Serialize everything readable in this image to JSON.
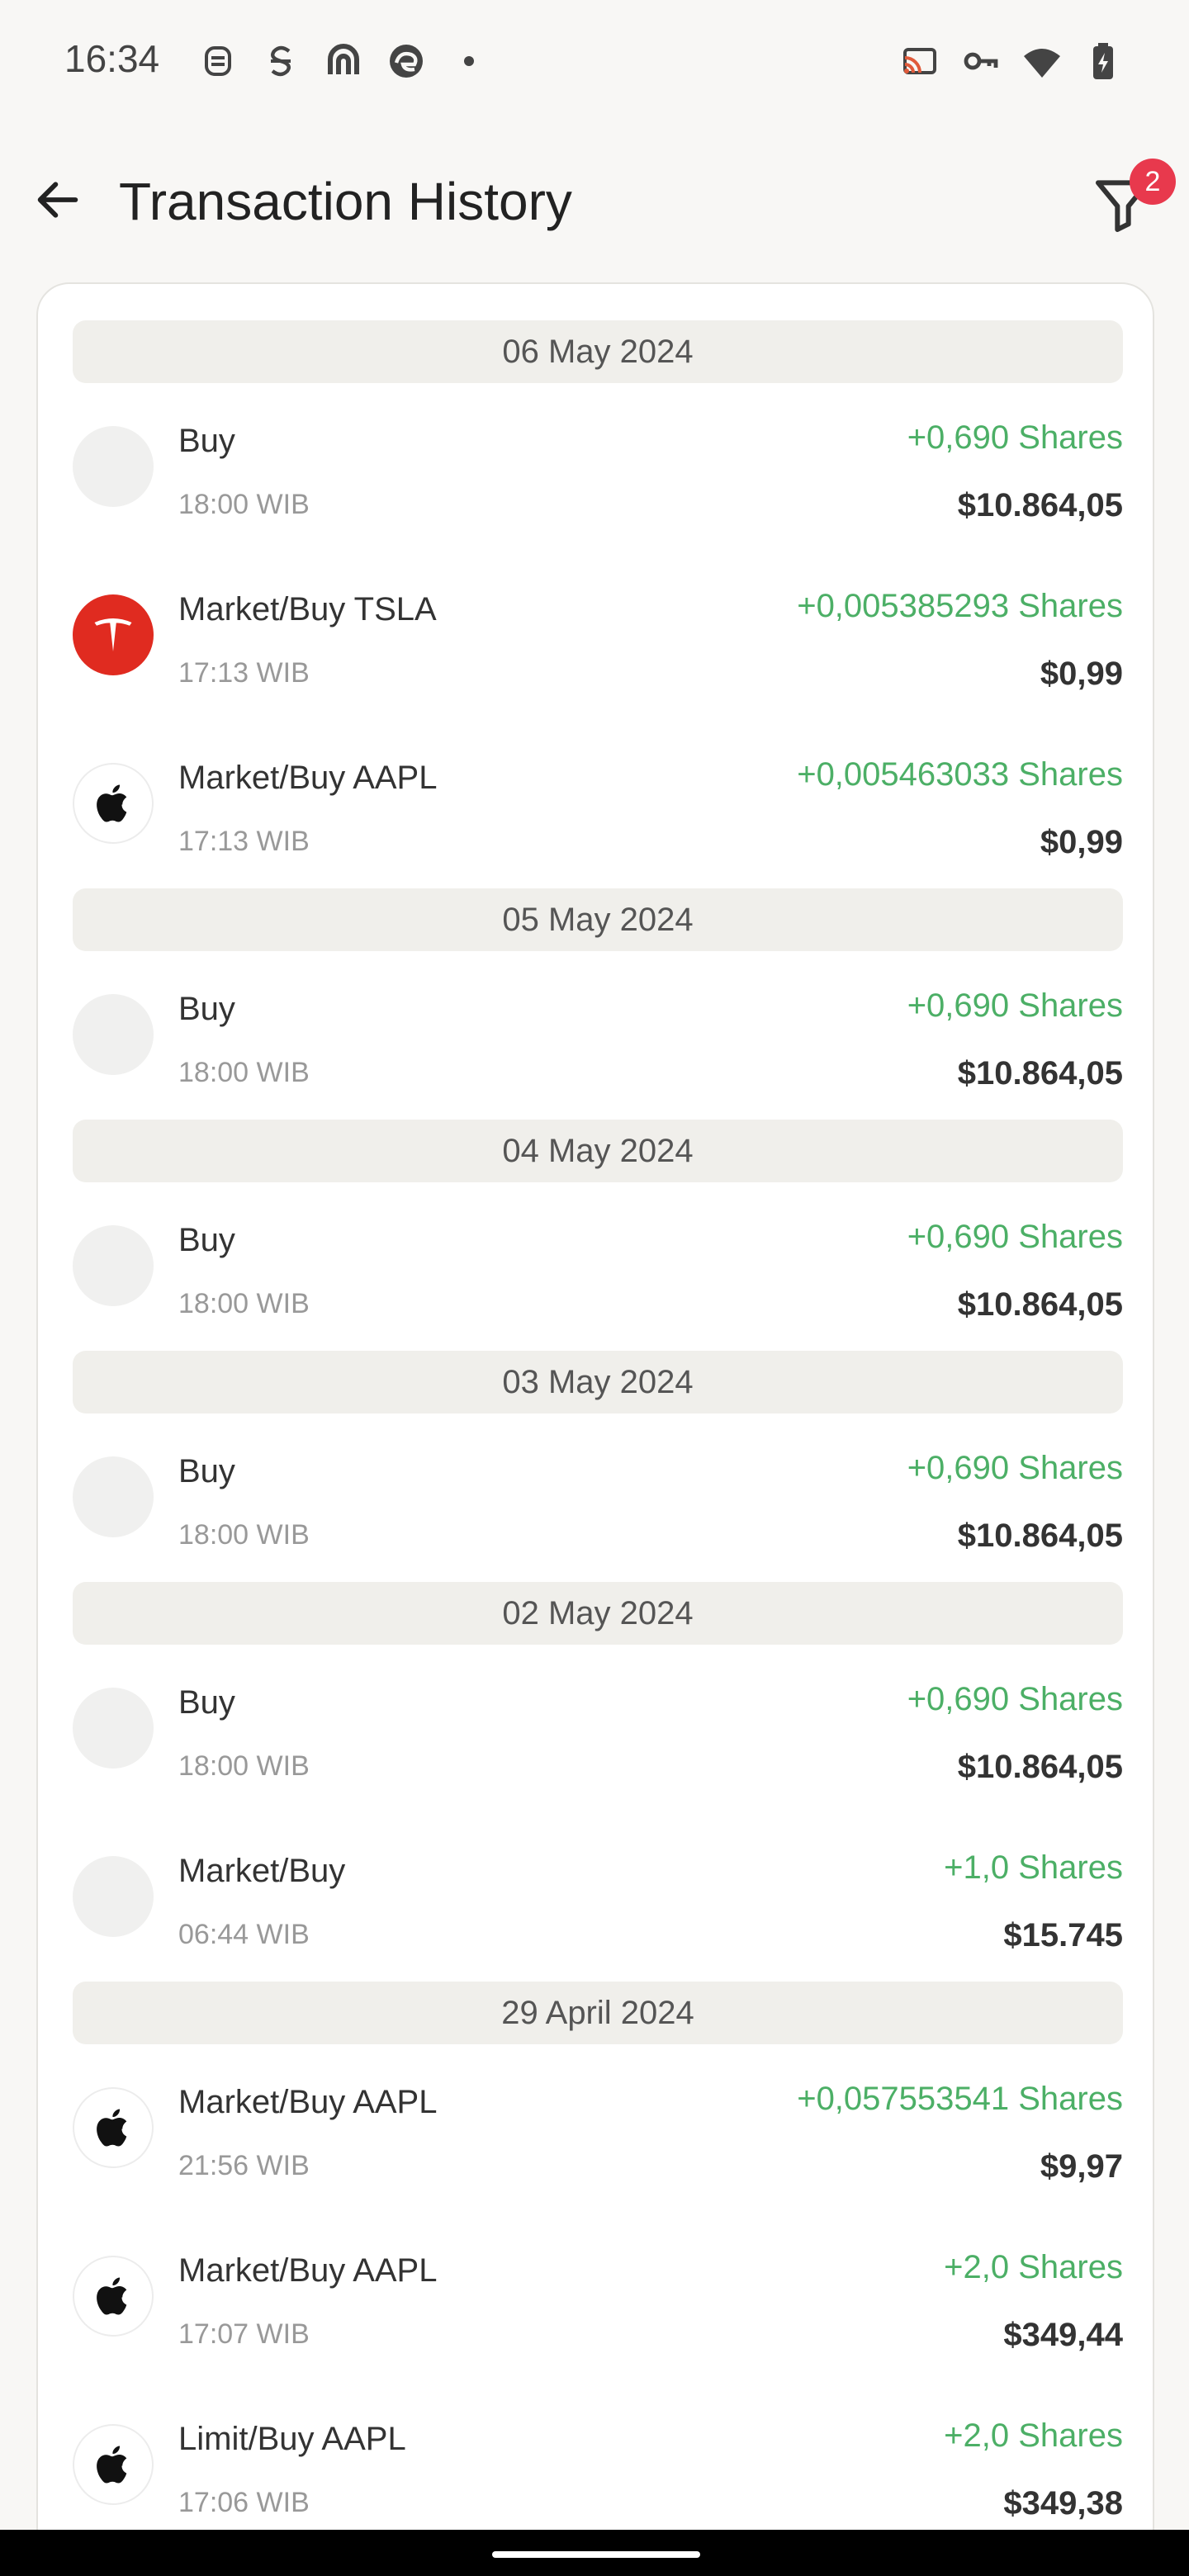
{
  "status_bar": {
    "time": "16:34",
    "left_icons": [
      "notification-a-icon",
      "notification-s-icon",
      "app-icon",
      "edge-icon",
      "more-dot-icon"
    ],
    "right_icons": [
      "cast-icon",
      "vpn-key-icon",
      "wifi-icon",
      "battery-charging-icon"
    ]
  },
  "header": {
    "title": "Transaction History",
    "filter_badge": "2"
  },
  "colors": {
    "accent_green": "#4caf66",
    "badge_red": "#e8394d",
    "tesla_red": "#e02b20"
  },
  "groups": [
    {
      "date": "06 May 2024",
      "items": [
        {
          "title": "Buy",
          "time": "18:00 WIB",
          "shares": "+0,690 Shares",
          "amount": "$10.864,05",
          "logo": "blank"
        },
        {
          "title": "Market/Buy TSLA",
          "time": "17:13 WIB",
          "shares": "+0,005385293 Shares",
          "amount": "$0,99",
          "logo": "tesla"
        },
        {
          "title": "Market/Buy AAPL",
          "time": "17:13 WIB",
          "shares": "+0,005463033 Shares",
          "amount": "$0,99",
          "logo": "apple"
        }
      ]
    },
    {
      "date": "05 May 2024",
      "items": [
        {
          "title": "Buy",
          "time": "18:00 WIB",
          "shares": "+0,690 Shares",
          "amount": "$10.864,05",
          "logo": "blank"
        }
      ]
    },
    {
      "date": "04 May 2024",
      "items": [
        {
          "title": "Buy",
          "time": "18:00 WIB",
          "shares": "+0,690 Shares",
          "amount": "$10.864,05",
          "logo": "blank"
        }
      ]
    },
    {
      "date": "03 May 2024",
      "items": [
        {
          "title": "Buy",
          "time": "18:00 WIB",
          "shares": "+0,690 Shares",
          "amount": "$10.864,05",
          "logo": "blank"
        }
      ]
    },
    {
      "date": "02 May 2024",
      "items": [
        {
          "title": "Buy",
          "time": "18:00 WIB",
          "shares": "+0,690 Shares",
          "amount": "$10.864,05",
          "logo": "blank"
        },
        {
          "title": "Market/Buy",
          "time": "06:44 WIB",
          "shares": "+1,0 Shares",
          "amount": "$15.745",
          "logo": "blank"
        }
      ]
    },
    {
      "date": "29 April 2024",
      "items": [
        {
          "title": "Market/Buy AAPL",
          "time": "21:56 WIB",
          "shares": "+0,057553541 Shares",
          "amount": "$9,97",
          "logo": "apple"
        },
        {
          "title": "Market/Buy AAPL",
          "time": "17:07 WIB",
          "shares": "+2,0 Shares",
          "amount": "$349,44",
          "logo": "apple"
        },
        {
          "title": "Limit/Buy AAPL",
          "time": "17:06 WIB",
          "shares": "+2,0 Shares",
          "amount": "$349,38",
          "logo": "apple"
        }
      ]
    }
  ]
}
